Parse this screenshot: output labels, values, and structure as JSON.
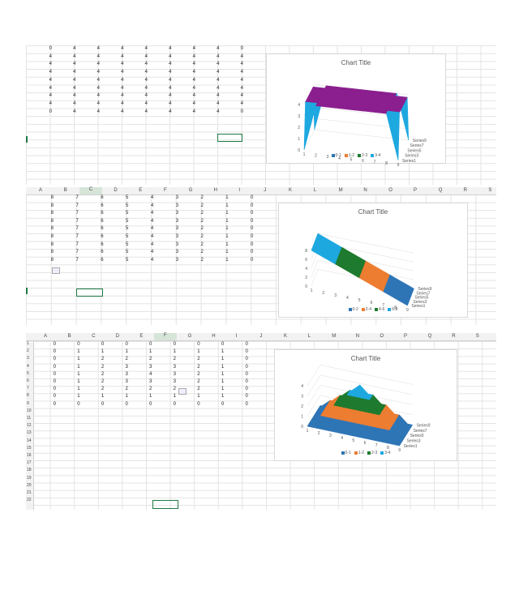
{
  "colors": {
    "s1": "#2e75b6",
    "s2": "#ed7d31",
    "s3": "#1e7a2e",
    "s4": "#1ea8e0",
    "top": "#8b1f8f",
    "select": "#1e7a45"
  },
  "col_letters": [
    "A",
    "B",
    "C",
    "D",
    "E",
    "F",
    "G",
    "H",
    "I",
    "J",
    "K",
    "L",
    "M",
    "N",
    "O",
    "P",
    "Q",
    "R",
    "S"
  ],
  "panel1": {
    "rows": [
      [
        "0",
        "4",
        "4",
        "4",
        "4",
        "4",
        "4",
        "4",
        "0"
      ],
      [
        "4",
        "4",
        "4",
        "4",
        "4",
        "4",
        "4",
        "4",
        "4"
      ],
      [
        "4",
        "4",
        "4",
        "4",
        "4",
        "4",
        "4",
        "4",
        "4"
      ],
      [
        "4",
        "4",
        "4",
        "4",
        "4",
        "4",
        "4",
        "4",
        "4"
      ],
      [
        "4",
        "4",
        "4",
        "4",
        "4",
        "4",
        "4",
        "4",
        "4"
      ],
      [
        "4",
        "4",
        "4",
        "4",
        "4",
        "4",
        "4",
        "4",
        "4"
      ],
      [
        "4",
        "4",
        "4",
        "4",
        "4",
        "4",
        "4",
        "4",
        "4"
      ],
      [
        "4",
        "4",
        "4",
        "4",
        "4",
        "4",
        "4",
        "4",
        "4"
      ],
      [
        "0",
        "4",
        "4",
        "4",
        "4",
        "4",
        "4",
        "4",
        "0"
      ]
    ],
    "chart": {
      "title": "Chart Title",
      "yticks": [
        "0",
        "1",
        "2",
        "3",
        "4"
      ],
      "xticks": [
        "1",
        "2",
        "3",
        "4",
        "5",
        "6",
        "7",
        "8",
        "9"
      ],
      "series_labels": [
        "Series9",
        "Series7",
        "Series5",
        "Series3",
        "Series1"
      ],
      "legend": [
        {
          "label": "0-1",
          "c": "s1"
        },
        {
          "label": "1-2",
          "c": "s2"
        },
        {
          "label": "2-3",
          "c": "s3"
        },
        {
          "label": "3-4",
          "c": "s4"
        }
      ]
    }
  },
  "panel2": {
    "rows": [
      [
        "8",
        "7",
        "6",
        "5",
        "4",
        "3",
        "2",
        "1",
        "0"
      ],
      [
        "8",
        "7",
        "6",
        "5",
        "4",
        "3",
        "2",
        "1",
        "0"
      ],
      [
        "8",
        "7",
        "6",
        "5",
        "4",
        "3",
        "2",
        "1",
        "0"
      ],
      [
        "8",
        "7",
        "6",
        "5",
        "4",
        "3",
        "2",
        "1",
        "0"
      ],
      [
        "8",
        "7",
        "6",
        "5",
        "4",
        "3",
        "2",
        "1",
        "0"
      ],
      [
        "8",
        "7",
        "6",
        "5",
        "4",
        "3",
        "2",
        "1",
        "0"
      ],
      [
        "8",
        "7",
        "6",
        "5",
        "4",
        "3",
        "2",
        "1",
        "0"
      ],
      [
        "8",
        "7",
        "6",
        "5",
        "4",
        "3",
        "2",
        "1",
        "0"
      ],
      [
        "8",
        "7",
        "6",
        "5",
        "4",
        "3",
        "2",
        "1",
        "0"
      ]
    ],
    "chart": {
      "title": "Chart Title",
      "yticks": [
        "0",
        "2",
        "4",
        "6",
        "8"
      ],
      "xticks": [
        "1",
        "2",
        "3",
        "4",
        "5",
        "6",
        "7",
        "8",
        "9"
      ],
      "series_labels": [
        "Series9",
        "Series7",
        "Series5",
        "Series3",
        "Series1"
      ],
      "legend": [
        {
          "label": "0-2",
          "c": "s1"
        },
        {
          "label": "2-4",
          "c": "s2"
        },
        {
          "label": "4-6",
          "c": "s3"
        },
        {
          "label": "6-8",
          "c": "s4"
        }
      ]
    }
  },
  "panel3": {
    "row_numbers": [
      "1",
      "2",
      "3",
      "4",
      "5",
      "6",
      "7",
      "8",
      "9",
      "10",
      "11",
      "12",
      "13",
      "14",
      "15",
      "16",
      "17",
      "18",
      "19",
      "20",
      "21",
      "22"
    ],
    "rows": [
      [
        "0",
        "0",
        "0",
        "0",
        "0",
        "0",
        "0",
        "0",
        "0"
      ],
      [
        "0",
        "1",
        "1",
        "1",
        "1",
        "1",
        "1",
        "1",
        "0"
      ],
      [
        "0",
        "1",
        "2",
        "2",
        "2",
        "2",
        "2",
        "1",
        "0"
      ],
      [
        "0",
        "1",
        "2",
        "3",
        "3",
        "3",
        "2",
        "1",
        "0"
      ],
      [
        "0",
        "1",
        "2",
        "3",
        "4",
        "3",
        "2",
        "1",
        "0"
      ],
      [
        "0",
        "1",
        "2",
        "3",
        "3",
        "3",
        "2",
        "1",
        "0"
      ],
      [
        "0",
        "1",
        "2",
        "2",
        "2",
        "2",
        "2",
        "1",
        "0"
      ],
      [
        "0",
        "1",
        "1",
        "1",
        "1",
        "1",
        "1",
        "1",
        "0"
      ],
      [
        "0",
        "0",
        "0",
        "0",
        "0",
        "0",
        "0",
        "0",
        "0"
      ]
    ],
    "chart": {
      "title": "Chart Title",
      "yticks": [
        "0",
        "1",
        "2",
        "3",
        "4"
      ],
      "xticks": [
        "1",
        "2",
        "3",
        "4",
        "5",
        "6",
        "7",
        "8",
        "9"
      ],
      "series_labels": [
        "Series9",
        "Series7",
        "Series5",
        "Series3",
        "Series1"
      ],
      "legend": [
        {
          "label": "0-1",
          "c": "s1"
        },
        {
          "label": "1-2",
          "c": "s2"
        },
        {
          "label": "2-3",
          "c": "s3"
        },
        {
          "label": "3-4",
          "c": "s4"
        }
      ]
    }
  }
}
